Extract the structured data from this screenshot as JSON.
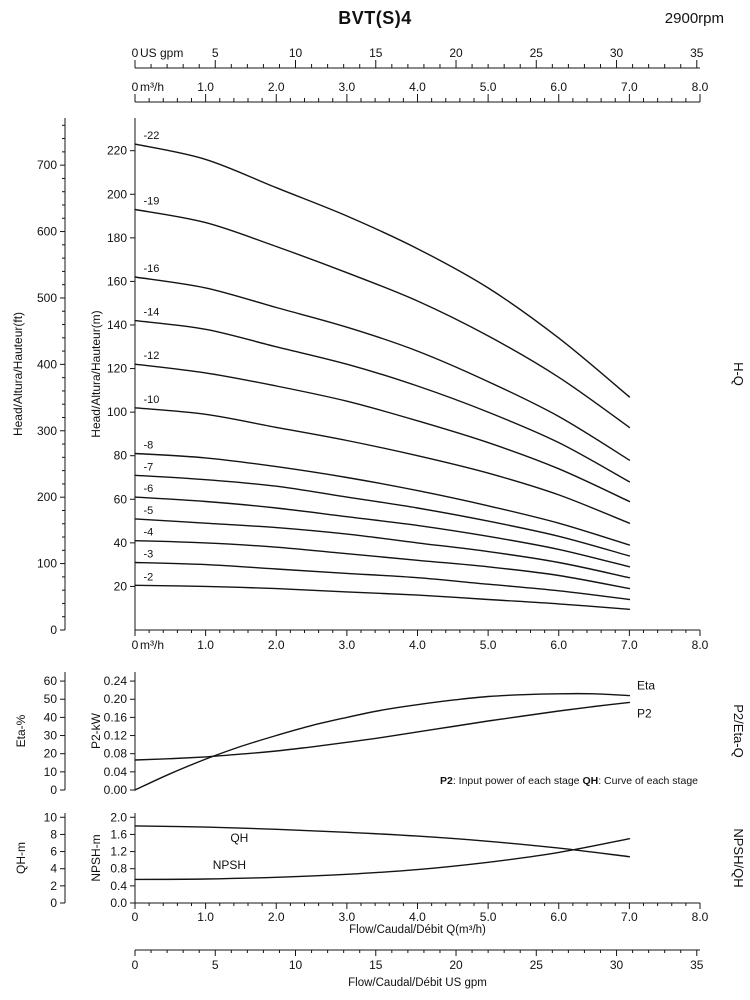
{
  "header": {
    "title": "BVT(S)4",
    "rpm": "2900rpm"
  },
  "chart_data": [
    {
      "id": "hq",
      "type": "line",
      "title_right": "H-Q",
      "x_axis": {
        "unit": "m³/h",
        "max": 8,
        "values": [
          0,
          1,
          2,
          3,
          4,
          5,
          6,
          7,
          8
        ],
        "labels": [
          "0",
          "1.0",
          "2.0",
          "3.0",
          "4.0",
          "5.0",
          "6.0",
          "7.0",
          "8.0"
        ]
      },
      "x_axis_top_gpm": {
        "unit": "US gpm",
        "max": 35.2,
        "values": [
          0,
          5,
          10,
          15,
          20,
          25,
          30,
          35
        ],
        "labels": [
          "0",
          "5",
          "10",
          "15",
          "20",
          "25",
          "30",
          "35"
        ]
      },
      "y_axis_inner": {
        "label": "Head/Altura/Hauteur(m)",
        "max": 235,
        "values": [
          20,
          40,
          60,
          80,
          100,
          120,
          140,
          160,
          180,
          200,
          220
        ],
        "labels": [
          "20",
          "40",
          "60",
          "80",
          "100",
          "120",
          "140",
          "160",
          "180",
          "200",
          "220"
        ]
      },
      "y_axis_outer": {
        "label": "Head/Altura/Hauteur(ft)",
        "max": 771,
        "values": [
          0,
          100,
          200,
          300,
          400,
          500,
          600,
          700
        ],
        "labels": [
          "0",
          "100",
          "200",
          "300",
          "400",
          "500",
          "600",
          "700"
        ]
      },
      "x_values": [
        0,
        1,
        2,
        3,
        4,
        5,
        6,
        7
      ],
      "series": [
        {
          "label": "-22",
          "values": [
            223,
            216,
            203,
            190,
            175,
            157,
            134,
            107
          ]
        },
        {
          "label": "-19",
          "values": [
            193,
            187,
            176,
            164,
            151,
            135,
            116,
            93
          ]
        },
        {
          "label": "-16",
          "values": [
            162,
            157,
            148,
            139,
            128,
            114,
            98,
            78
          ]
        },
        {
          "label": "-14",
          "values": [
            142,
            138,
            130,
            122,
            112,
            100,
            86,
            68
          ]
        },
        {
          "label": "-12",
          "values": [
            122,
            118,
            112,
            105,
            96,
            86,
            74,
            59
          ]
        },
        {
          "label": "-10",
          "values": [
            102,
            99,
            93,
            87,
            80,
            72,
            62,
            49
          ]
        },
        {
          "label": "-8",
          "values": [
            81,
            79,
            75,
            70,
            64,
            57,
            49,
            39
          ]
        },
        {
          "label": "-7",
          "values": [
            71,
            69,
            66,
            61,
            56,
            50,
            43,
            34
          ]
        },
        {
          "label": "-6",
          "values": [
            61,
            59,
            56,
            52,
            48,
            43,
            37,
            29
          ]
        },
        {
          "label": "-5",
          "values": [
            51,
            49,
            47,
            44,
            40,
            36,
            31,
            24
          ]
        },
        {
          "label": "-4",
          "values": [
            41,
            40,
            38,
            35,
            32,
            29,
            25,
            19
          ]
        },
        {
          "label": "-3",
          "values": [
            31,
            30,
            28,
            26,
            24,
            21,
            18,
            14
          ]
        },
        {
          "label": "-2",
          "values": [
            20.5,
            20,
            19,
            17.5,
            16,
            14,
            12,
            9.5
          ]
        }
      ]
    },
    {
      "id": "eta_p2",
      "type": "line",
      "title_right": "P2/Eta-Q",
      "y_axis_inner": {
        "label": "P2-kW",
        "max": 0.26,
        "values": [
          0,
          0.04,
          0.08,
          0.12,
          0.16,
          0.2,
          0.24
        ],
        "labels": [
          "0.00",
          "0.04",
          "0.08",
          "0.12",
          "0.16",
          "0.20",
          "0.24"
        ]
      },
      "y_axis_outer": {
        "label": "Eta-%",
        "max": 65,
        "values": [
          0,
          10,
          20,
          30,
          40,
          50,
          60
        ],
        "labels": [
          "0",
          "10",
          "20",
          "30",
          "40",
          "50",
          "60"
        ]
      },
      "series": [
        {
          "label": "Eta",
          "axis": "outer",
          "x": [
            0,
            0.5,
            1,
            1.5,
            2,
            2.5,
            3,
            3.5,
            4,
            4.5,
            5,
            5.5,
            6,
            6.5,
            7
          ],
          "values": [
            0,
            9,
            17,
            24,
            30,
            35.5,
            40,
            44,
            47,
            49.5,
            51.5,
            52.5,
            53,
            53,
            52
          ]
        },
        {
          "label": "P2",
          "axis": "inner",
          "x": [
            0,
            0.5,
            1,
            1.5,
            2,
            2.5,
            3,
            3.5,
            4,
            4.5,
            5,
            5.5,
            6,
            6.5,
            7
          ],
          "values": [
            0.066,
            0.069,
            0.073,
            0.079,
            0.086,
            0.095,
            0.105,
            0.116,
            0.128,
            0.14,
            0.152,
            0.163,
            0.174,
            0.184,
            0.193
          ]
        }
      ],
      "note_segments": [
        {
          "text": "P2",
          "bold": true
        },
        {
          "text": ": Input power of each stage ",
          "bold": false
        },
        {
          "text": "QH",
          "bold": true
        },
        {
          "text": ": Curve of each stage",
          "bold": false
        }
      ]
    },
    {
      "id": "npsh_qh",
      "type": "line",
      "title_right": "NPSH/QH",
      "y_axis_inner": {
        "label": "NPSH-m",
        "max": 2.1,
        "values": [
          0,
          0.4,
          0.8,
          1.2,
          1.6,
          2.0
        ],
        "labels": [
          "0.0",
          "0.4",
          "0.8",
          "1.2",
          "1.6",
          "2.0"
        ]
      },
      "y_axis_outer": {
        "label": "QH-m",
        "max": 10.5,
        "values": [
          0,
          2,
          4,
          6,
          8,
          10
        ],
        "labels": [
          "0",
          "2",
          "4",
          "6",
          "8",
          "10"
        ]
      },
      "x_axis": {
        "title": "Flow/Caudal/Débit Q(m³/h)",
        "max": 8,
        "values": [
          0,
          1,
          2,
          3,
          4,
          5,
          6,
          7,
          8
        ],
        "labels": [
          "0",
          "1.0",
          "2.0",
          "3.0",
          "4.0",
          "5.0",
          "6.0",
          "7.0",
          "8.0"
        ]
      },
      "x_axis_bottom_gpm": {
        "title": "Flow/Caudal/Débit  US gpm",
        "max": 35.2,
        "values": [
          0,
          5,
          10,
          15,
          20,
          25,
          30,
          35
        ],
        "labels": [
          "0",
          "5",
          "10",
          "15",
          "20",
          "25",
          "30",
          "35"
        ]
      },
      "series": [
        {
          "label": "QH",
          "axis": "outer",
          "x": [
            0,
            1,
            2,
            3,
            4,
            5,
            6,
            7
          ],
          "values": [
            9.0,
            8.85,
            8.6,
            8.25,
            7.8,
            7.2,
            6.4,
            5.4
          ]
        },
        {
          "label": "NPSH",
          "axis": "inner",
          "x": [
            0,
            1,
            2,
            3,
            4,
            5,
            6,
            7
          ],
          "values": [
            0.55,
            0.56,
            0.6,
            0.67,
            0.78,
            0.95,
            1.18,
            1.5
          ]
        }
      ]
    }
  ]
}
